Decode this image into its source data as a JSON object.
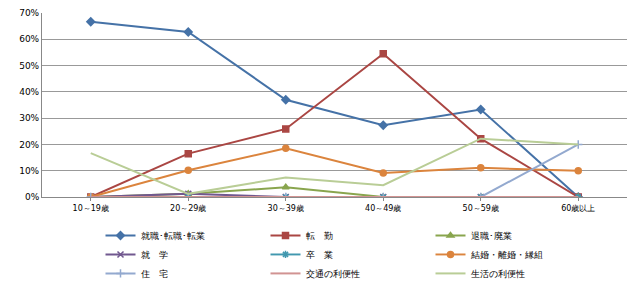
{
  "chart_data": {
    "type": "line",
    "categories": [
      "10～19歳",
      "20～29歳",
      "30～39歳",
      "40～49歳",
      "50～59歳",
      "60歳以上"
    ],
    "series": [
      {
        "name": "就職･転職･転業",
        "color": "#4572A7",
        "marker": "diamond",
        "values": [
          66.7,
          62.8,
          37.0,
          27.3,
          33.3,
          0
        ]
      },
      {
        "name": "転　勤",
        "color": "#AA4643",
        "marker": "square",
        "values": [
          0,
          16.5,
          25.9,
          54.5,
          22.2,
          0
        ]
      },
      {
        "name": "退職･廃業",
        "color": "#89A54E",
        "marker": "triangle-up",
        "values": [
          0,
          1.2,
          3.7,
          0,
          0,
          0
        ]
      },
      {
        "name": "就　学",
        "color": "#71588F",
        "marker": "x-thin-open",
        "values": [
          0,
          1.2,
          0,
          0,
          0,
          0
        ]
      },
      {
        "name": "卒　業",
        "color": "#4198AF",
        "marker": "asterisk-open",
        "values": [
          0,
          0,
          0,
          0,
          0,
          0
        ]
      },
      {
        "name": "結婚・離婚・縁組",
        "color": "#DB843D",
        "marker": "circle",
        "values": [
          0,
          10.2,
          18.5,
          9.1,
          11.1,
          10.0
        ]
      },
      {
        "name": "住　宅",
        "color": "#93A9CF",
        "marker": "cross-thin-open",
        "values": [
          0,
          0,
          0,
          0,
          0,
          20.0
        ]
      },
      {
        "name": "交通の利便性",
        "color": "#D19392",
        "marker": "none",
        "values": [
          0,
          0,
          0,
          0,
          0,
          0
        ]
      },
      {
        "name": "生活の利便性",
        "color": "#B9CD96",
        "marker": "none",
        "values": [
          16.7,
          1.2,
          7.4,
          4.5,
          22.2,
          20.0
        ]
      }
    ],
    "ylim": [
      0,
      70
    ],
    "yticks": [
      {
        "value": 0,
        "label": "0%"
      },
      {
        "value": 10,
        "label": "10%"
      },
      {
        "value": 20,
        "label": "20%"
      },
      {
        "value": 30,
        "label": "30%"
      },
      {
        "value": 40,
        "label": "40%"
      },
      {
        "value": 50,
        "label": "50%"
      },
      {
        "value": 60,
        "label": "60%"
      },
      {
        "value": 70,
        "label": "70%"
      }
    ],
    "grid": true,
    "legend": "bottom"
  }
}
